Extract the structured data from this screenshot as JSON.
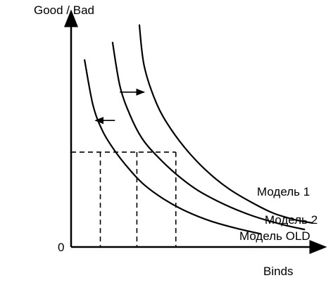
{
  "chart_data": {
    "type": "line",
    "ylabel": "Good / Bad",
    "xlabel": "Binds",
    "origin_label": "0",
    "xlim": [
      0,
      10
    ],
    "ylim": [
      0,
      10
    ],
    "grid": false,
    "legend": "none (labels at curve ends)",
    "series": [
      {
        "name": "Модель OLD",
        "x": [
          0.55,
          0.9,
          1.3,
          1.8,
          2.4,
          3.0,
          3.8,
          4.7,
          5.7,
          6.8,
          7.8
        ],
        "y": [
          8.6,
          6.5,
          5.3,
          4.4,
          3.55,
          2.85,
          2.2,
          1.65,
          1.2,
          0.85,
          0.6
        ]
      },
      {
        "name": "Модель 2",
        "x": [
          1.7,
          2.0,
          2.4,
          2.9,
          3.5,
          4.3,
          5.2,
          6.3,
          7.4,
          8.6,
          9.6
        ],
        "y": [
          9.4,
          7.4,
          6.1,
          5.0,
          4.2,
          3.35,
          2.6,
          1.95,
          1.45,
          1.05,
          0.8
        ]
      },
      {
        "name": "Модель 1",
        "x": [
          2.8,
          3.0,
          3.5,
          4.1,
          4.9,
          5.7,
          6.5,
          7.4,
          8.3,
          9.2,
          9.9
        ],
        "y": [
          10.2,
          8.3,
          6.6,
          5.4,
          4.25,
          3.35,
          2.65,
          2.05,
          1.55,
          1.25,
          1.1
        ]
      }
    ],
    "reference": {
      "y_level": 4.35,
      "x_points": [
        1.2,
        2.7,
        4.3
      ]
    },
    "shift_arrows": [
      {
        "from_x": 1.8,
        "to_x": 1.0,
        "y": 5.8
      },
      {
        "from_x": 2.0,
        "to_x": 3.0,
        "y": 7.1
      }
    ],
    "colors": {
      "ink": "#000000",
      "background": "#ffffff"
    }
  }
}
